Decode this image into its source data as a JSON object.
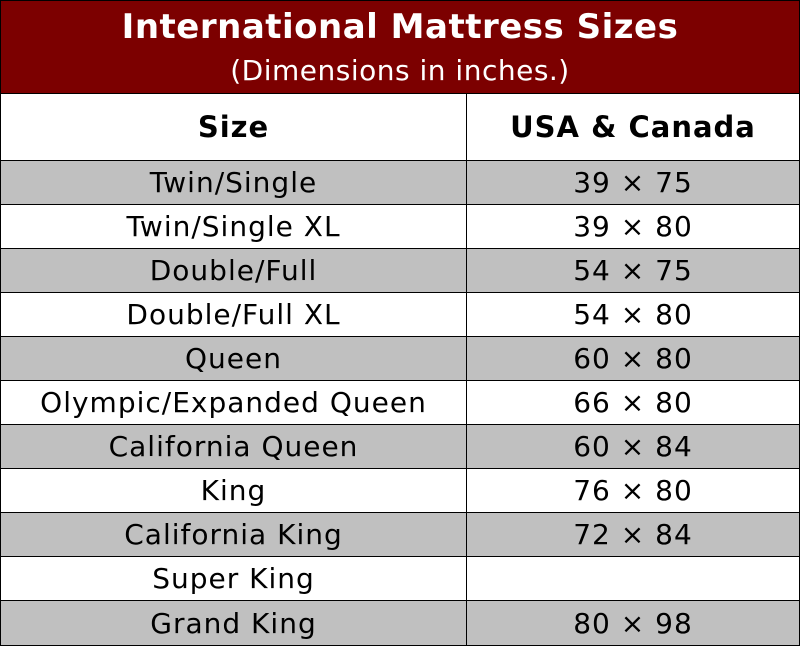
{
  "header": {
    "title": "International Mattress Sizes",
    "subtitle": "(Dimensions in inches.)"
  },
  "table": {
    "columns": [
      "Size",
      "USA & Canada"
    ],
    "rows": [
      [
        "Twin/Single",
        "39 × 75"
      ],
      [
        "Twin/Single XL",
        "39 × 80"
      ],
      [
        "Double/Full",
        "54 × 75"
      ],
      [
        "Double/Full XL",
        "54 × 80"
      ],
      [
        "Queen",
        "60 × 80"
      ],
      [
        "Olympic/Expanded Queen",
        "66 × 80"
      ],
      [
        "California Queen",
        "60 × 84"
      ],
      [
        "King",
        "76 × 80"
      ],
      [
        "California King",
        "72 × 84"
      ],
      [
        "Super King",
        null
      ],
      [
        "Grand King",
        "80 × 98"
      ]
    ]
  }
}
